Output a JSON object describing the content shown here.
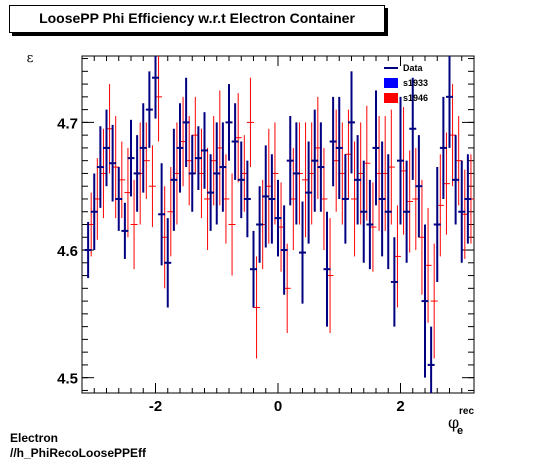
{
  "page": {
    "title": "LoosePP Phi Efficiency w.r.t Electron Container",
    "footer_line1": "Electron",
    "footer_line2": "//h_PhiRecoLoosePPEff"
  },
  "colors": {
    "data": "#000080",
    "s1933": "#0000ff",
    "s1946": "#ff0000",
    "frame": "#000000"
  },
  "chart_data": {
    "type": "scatter",
    "ylabel": "ε",
    "xlabel_main": "φ",
    "xlabel_sub": "e",
    "xlabel_sup": "rec",
    "xlim": [
      -3.2,
      3.2
    ],
    "ylim": [
      4.488,
      4.752
    ],
    "xticks": [
      -2,
      0,
      2
    ],
    "xtick_labels": [
      "-2",
      "0",
      "2"
    ],
    "yticks": [
      4.5,
      4.6,
      4.7
    ],
    "ytick_labels": [
      "4.5",
      "4.6",
      "4.7"
    ],
    "legend": {
      "position": "top-right",
      "entries": [
        {
          "name": "Data",
          "style": "line",
          "color": "#000080"
        },
        {
          "name": "s1933",
          "style": "box",
          "color": "#0000ff"
        },
        {
          "name": "s1946",
          "style": "box",
          "color": "#ff0000"
        }
      ]
    },
    "series": [
      {
        "name": "Data",
        "color": "#000080",
        "x": [
          -3.1,
          -3.0,
          -2.9,
          -2.8,
          -2.7,
          -2.6,
          -2.5,
          -2.4,
          -2.3,
          -2.2,
          -2.1,
          -2.0,
          -1.9,
          -1.8,
          -1.7,
          -1.6,
          -1.5,
          -1.4,
          -1.3,
          -1.2,
          -1.1,
          -1.0,
          -0.9,
          -0.8,
          -0.7,
          -0.6,
          -0.5,
          -0.4,
          -0.3,
          -0.2,
          -0.1,
          0.0,
          0.1,
          0.2,
          0.3,
          0.4,
          0.5,
          0.6,
          0.7,
          0.8,
          0.9,
          1.0,
          1.1,
          1.2,
          1.3,
          1.4,
          1.5,
          1.6,
          1.7,
          1.8,
          1.9,
          2.0,
          2.1,
          2.2,
          2.3,
          2.4,
          2.5,
          2.6,
          2.7,
          2.8,
          2.9,
          3.0,
          3.1
        ],
        "y": [
          4.6,
          4.63,
          4.665,
          4.68,
          4.668,
          4.64,
          4.615,
          4.672,
          4.66,
          4.68,
          4.71,
          4.735,
          4.628,
          4.59,
          4.655,
          4.68,
          4.7,
          4.66,
          4.672,
          4.678,
          4.645,
          4.66,
          4.665,
          4.7,
          4.685,
          4.655,
          4.64,
          4.585,
          4.62,
          4.642,
          4.64,
          4.625,
          4.6,
          4.67,
          4.66,
          4.598,
          4.645,
          4.67,
          4.665,
          4.585,
          4.685,
          4.68,
          4.64,
          4.7,
          4.655,
          4.63,
          4.62,
          4.68,
          4.64,
          4.63,
          4.575,
          4.67,
          4.63,
          4.695,
          4.65,
          4.56,
          4.51,
          4.62,
          4.68,
          4.72,
          4.655,
          4.63,
          4.64
        ],
        "err": [
          0.022,
          0.03,
          0.032,
          0.03,
          0.03,
          0.025,
          0.022,
          0.03,
          0.03,
          0.035,
          0.03,
          0.032,
          0.04,
          0.035,
          0.04,
          0.035,
          0.035,
          0.03,
          0.025,
          0.03,
          0.03,
          0.04,
          0.035,
          0.03,
          0.03,
          0.03,
          0.03,
          0.03,
          0.03,
          0.04,
          0.035,
          0.03,
          0.035,
          0.035,
          0.04,
          0.04,
          0.04,
          0.04,
          0.035,
          0.045,
          0.035,
          0.04,
          0.035,
          0.04,
          0.035,
          0.04,
          0.035,
          0.045,
          0.045,
          0.045,
          0.035,
          0.05,
          0.04,
          0.04,
          0.04,
          0.06,
          0.03,
          0.045,
          0.04,
          0.04,
          0.035,
          0.04,
          0.035
        ]
      },
      {
        "name": "s1946",
        "color": "#ff0000",
        "x": [
          -3.05,
          -2.95,
          -2.85,
          -2.75,
          -2.65,
          -2.55,
          -2.45,
          -2.35,
          -2.25,
          -2.15,
          -2.05,
          -1.95,
          -1.85,
          -1.75,
          -1.65,
          -1.55,
          -1.45,
          -1.35,
          -1.25,
          -1.15,
          -1.05,
          -0.95,
          -0.85,
          -0.75,
          -0.65,
          -0.55,
          -0.45,
          -0.35,
          -0.25,
          -0.15,
          -0.05,
          0.05,
          0.15,
          0.25,
          0.35,
          0.45,
          0.55,
          0.65,
          0.75,
          0.85,
          0.95,
          1.05,
          1.15,
          1.25,
          1.35,
          1.45,
          1.55,
          1.65,
          1.75,
          1.85,
          1.95,
          2.05,
          2.15,
          2.25,
          2.35,
          2.45,
          2.55,
          2.65,
          2.75,
          2.85,
          2.95,
          3.05,
          3.15
        ],
        "y": [
          4.62,
          4.64,
          4.66,
          4.695,
          4.665,
          4.655,
          4.645,
          4.62,
          4.66,
          4.67,
          4.65,
          4.72,
          4.61,
          4.63,
          4.66,
          4.685,
          4.67,
          4.69,
          4.66,
          4.64,
          4.67,
          4.68,
          4.64,
          4.62,
          4.688,
          4.66,
          4.7,
          4.555,
          4.62,
          4.65,
          4.66,
          4.618,
          4.57,
          4.64,
          4.66,
          4.655,
          4.66,
          4.68,
          4.64,
          4.58,
          4.67,
          4.66,
          4.675,
          4.64,
          4.66,
          4.668,
          4.618,
          4.66,
          4.66,
          4.665,
          4.595,
          4.662,
          4.638,
          4.64,
          4.61,
          4.588,
          4.56,
          4.635,
          4.652,
          4.69,
          4.67,
          4.628,
          4.64
        ],
        "err": [
          0.025,
          0.032,
          0.035,
          0.035,
          0.04,
          0.03,
          0.035,
          0.035,
          0.04,
          0.03,
          0.032,
          0.035,
          0.04,
          0.035,
          0.04,
          0.035,
          0.035,
          0.03,
          0.035,
          0.04,
          0.035,
          0.045,
          0.035,
          0.04,
          0.035,
          0.03,
          0.035,
          0.04,
          0.035,
          0.045,
          0.04,
          0.035,
          0.035,
          0.04,
          0.04,
          0.045,
          0.04,
          0.04,
          0.04,
          0.045,
          0.04,
          0.04,
          0.035,
          0.045,
          0.04,
          0.045,
          0.035,
          0.045,
          0.045,
          0.045,
          0.04,
          0.05,
          0.04,
          0.04,
          0.045,
          0.045,
          0.045,
          0.04,
          0.04,
          0.04,
          0.035,
          0.035,
          0.035
        ]
      }
    ]
  }
}
